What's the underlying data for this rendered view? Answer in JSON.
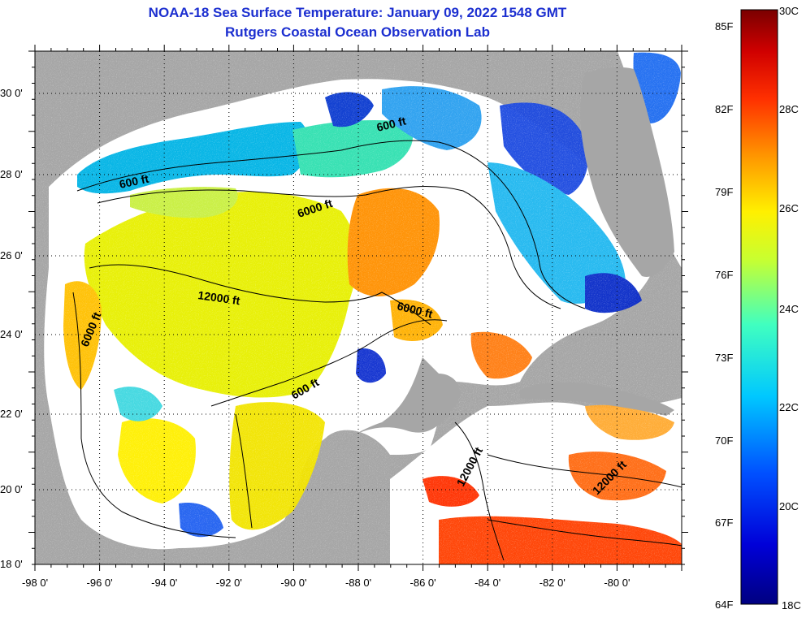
{
  "title_line1": "NOAA-18 Sea Surface Temperature:  January 09, 2022 1548 GMT",
  "title_line2": "Rutgers Coastal Ocean Observation Lab",
  "lon_ticks": [
    "-98 0'",
    "-96 0'",
    "-94 0'",
    "-92 0'",
    "-90 0'",
    "-88 0'",
    "-86 0'",
    "-84 0'",
    "-82 0'",
    "-80 0'"
  ],
  "lat_ticks": [
    "30 0'",
    "28 0'",
    "26 0'",
    "24 0'",
    "22 0'",
    "20 0'",
    "18 0'"
  ],
  "contour_labels": [
    "600 ft",
    "600 ft",
    "6000 ft",
    "12000 ft",
    "6000 ft",
    "6000 ft",
    "600 ft",
    "12000 ft",
    "12000 ft"
  ],
  "colorbar": {
    "fahrenheit_labels": [
      "85F",
      "82F",
      "79F",
      "76F",
      "73F",
      "70F",
      "67F",
      "64F"
    ],
    "celsius_labels": [
      "30C",
      "28C",
      "26C",
      "24C",
      "22C",
      "20C",
      "18C"
    ],
    "min_c": 18,
    "max_c": 30
  },
  "colors": {
    "land": "#a6a6a6",
    "cloud": "#ffffff",
    "title": "#1c2fd0"
  }
}
